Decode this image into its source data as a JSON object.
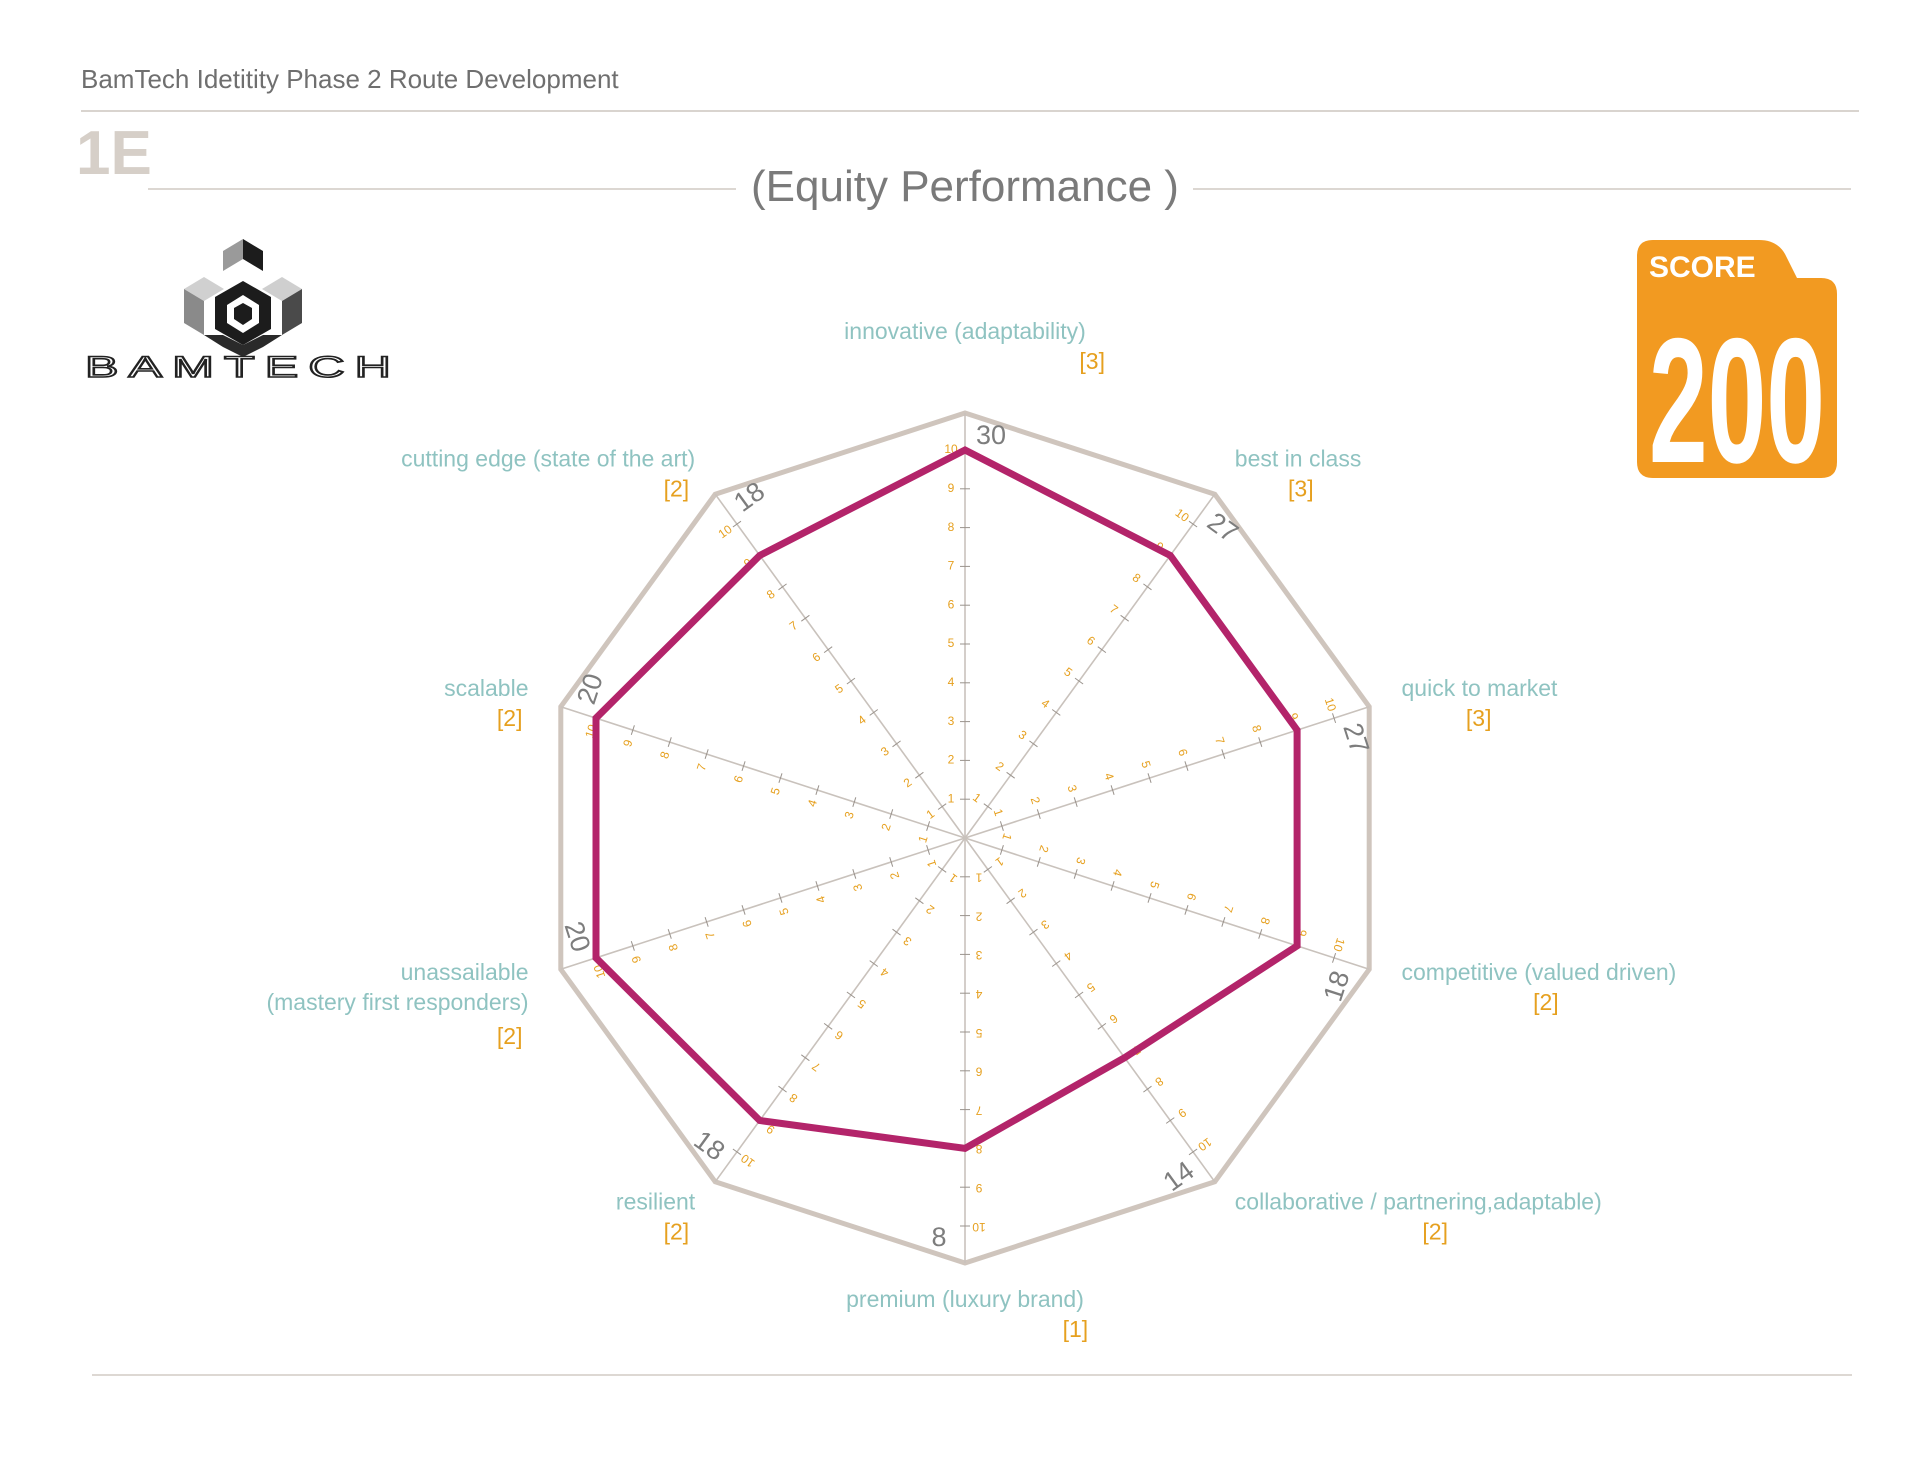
{
  "header": {
    "title": "BamTech Idetitity Phase 2 Route Development",
    "section_code": "1E"
  },
  "logo": {
    "wordmark": "BAMTECH"
  },
  "score": {
    "label": "SCORE",
    "value": "200"
  },
  "colors": {
    "profile_line": "#b3246a",
    "axis_label": "#8fc3c1",
    "weight": "#e6a01f",
    "score_badge": "#f29a21",
    "frame": "#cfc5bd"
  },
  "chart_data": {
    "type": "radar",
    "title": "(Equity Performance )",
    "scale": [
      0,
      10
    ],
    "ticks": [
      1,
      2,
      3,
      4,
      5,
      6,
      7,
      8,
      9,
      10
    ],
    "axes": [
      {
        "label": "innovative (adaptability)",
        "weight": "[3]",
        "value": 10,
        "total": "30"
      },
      {
        "label": "best in class",
        "weight": "[3]",
        "value": 9,
        "total": "27"
      },
      {
        "label": "quick to market",
        "weight": "[3]",
        "value": 9,
        "total": "27"
      },
      {
        "label": "competitive (valued driven)",
        "weight": "[2]",
        "value": 9,
        "total": "18"
      },
      {
        "label": "collaborative / partnering,adaptable)",
        "weight": "[2]",
        "value": 7,
        "total": "14"
      },
      {
        "label": "premium (luxury brand)",
        "weight": "[1]",
        "value": 8,
        "total": "8"
      },
      {
        "label": "resilient",
        "weight": "[2]",
        "value": 9,
        "total": "18"
      },
      {
        "label": "unassailable",
        "label_line2": "(mastery first responders)",
        "weight": "[2]",
        "value": 10,
        "total": "20"
      },
      {
        "label": "scalable",
        "weight": "[2]",
        "value": 10,
        "total": "20"
      },
      {
        "label": "cutting edge (state of the art)",
        "weight": "[2]",
        "value": 9,
        "total": "18"
      }
    ]
  }
}
